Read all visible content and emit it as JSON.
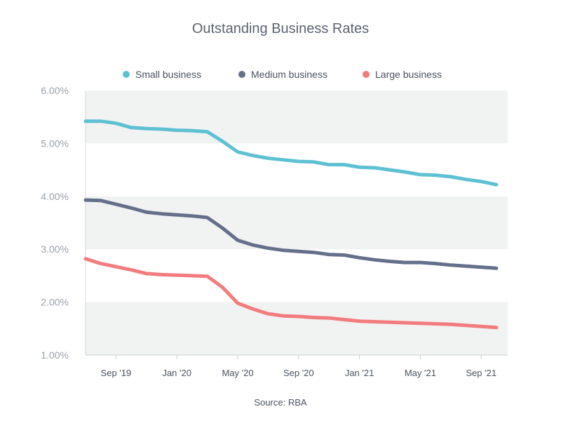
{
  "chart_data": {
    "type": "line",
    "title": "Outstanding Business Rates",
    "source": "Source: RBA",
    "ylim": [
      1.0,
      6.0
    ],
    "y_ticks": [
      {
        "value": 1.0,
        "label": "1.00%"
      },
      {
        "value": 2.0,
        "label": "2.00%"
      },
      {
        "value": 3.0,
        "label": "3.00%"
      },
      {
        "value": 4.0,
        "label": "4.00%"
      },
      {
        "value": 5.0,
        "label": "5.00%"
      },
      {
        "value": 6.0,
        "label": "6.00%"
      }
    ],
    "x_ticks": [
      "Sep '19",
      "Jan '20",
      "May '20",
      "Sep '20",
      "Jan '21",
      "May '21",
      "Sep '21"
    ],
    "x": [
      "Jul '19",
      "Aug '19",
      "Sep '19",
      "Oct '19",
      "Nov '19",
      "Dec '19",
      "Jan '20",
      "Feb '20",
      "Mar '20",
      "Apr '20",
      "May '20",
      "Jun '20",
      "Jul '20",
      "Aug '20",
      "Sep '20",
      "Oct '20",
      "Nov '20",
      "Dec '20",
      "Jan '21",
      "Feb '21",
      "Mar '21",
      "Apr '21",
      "May '21",
      "Jun '21",
      "Jul '21",
      "Aug '21",
      "Sep '21",
      "Oct '21"
    ],
    "legend_position": "top",
    "grid": "alternating horizontal bands",
    "series": [
      {
        "name": "Small business",
        "color": "#5ec1d3",
        "values": [
          5.42,
          5.42,
          5.38,
          5.3,
          5.28,
          5.27,
          5.25,
          5.24,
          5.22,
          5.04,
          4.84,
          4.77,
          4.72,
          4.69,
          4.66,
          4.65,
          4.6,
          4.6,
          4.55,
          4.54,
          4.5,
          4.46,
          4.41,
          4.4,
          4.37,
          4.32,
          4.28,
          4.22
        ]
      },
      {
        "name": "Medium business",
        "color": "#64708a",
        "values": [
          3.93,
          3.92,
          3.85,
          3.78,
          3.7,
          3.67,
          3.65,
          3.63,
          3.6,
          3.4,
          3.17,
          3.08,
          3.02,
          2.98,
          2.96,
          2.94,
          2.9,
          2.89,
          2.84,
          2.8,
          2.77,
          2.75,
          2.75,
          2.73,
          2.7,
          2.68,
          2.66,
          2.64
        ]
      },
      {
        "name": "Large business",
        "color": "#f27c7d",
        "values": [
          2.82,
          2.73,
          2.67,
          2.61,
          2.54,
          2.52,
          2.51,
          2.5,
          2.49,
          2.28,
          1.98,
          1.87,
          1.78,
          1.74,
          1.73,
          1.71,
          1.7,
          1.67,
          1.64,
          1.63,
          1.62,
          1.61,
          1.6,
          1.59,
          1.58,
          1.56,
          1.54,
          1.52
        ]
      }
    ]
  }
}
